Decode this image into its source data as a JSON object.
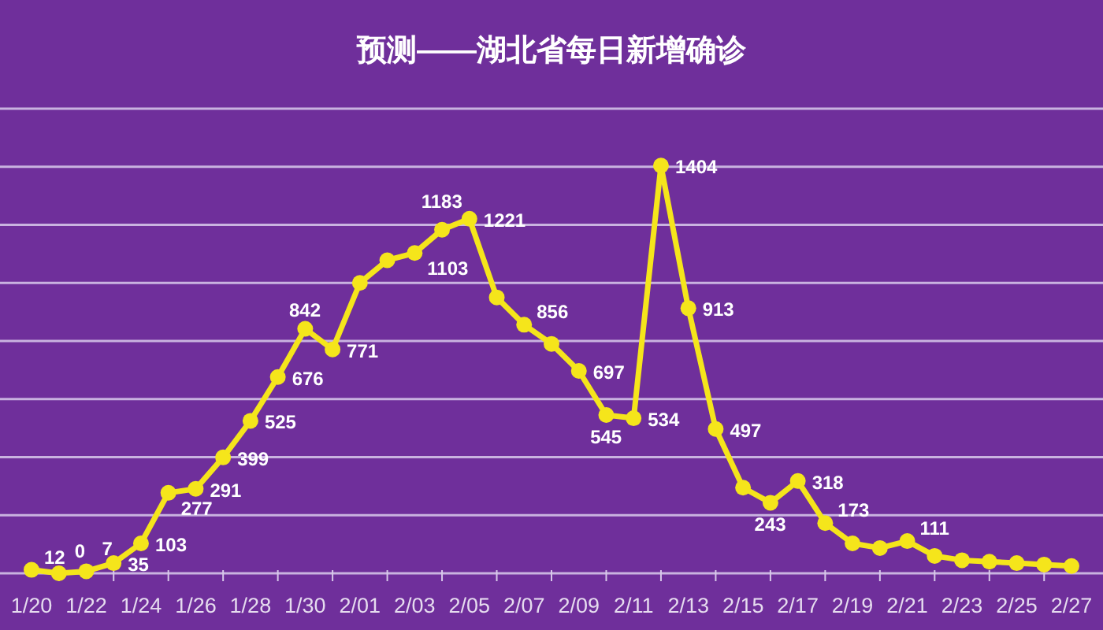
{
  "chart_data": {
    "type": "line",
    "title": "预测——湖北省每日新增确诊",
    "categories": [
      "1/20",
      null,
      "1/22",
      null,
      "1/24",
      null,
      "1/26",
      null,
      "1/28",
      null,
      "1/30",
      null,
      "2/01",
      null,
      "2/03",
      null,
      "2/05",
      null,
      "2/07",
      null,
      "2/09",
      null,
      "2/11",
      null,
      "2/13",
      null,
      "2/15",
      null,
      "2/17",
      null,
      "2/19",
      null,
      "2/21",
      null,
      "2/23",
      null,
      "2/25",
      null,
      "2/27"
    ],
    "values": [
      12,
      0,
      7,
      35,
      103,
      277,
      291,
      399,
      525,
      676,
      842,
      771,
      1000,
      1078,
      1103,
      1183,
      1221,
      950,
      856,
      790,
      697,
      545,
      534,
      1404,
      913,
      497,
      295,
      243,
      318,
      173,
      103,
      87,
      111,
      60,
      45,
      40,
      35,
      30,
      25
    ],
    "value_labels": [
      "12",
      "0",
      "7",
      "35",
      "103",
      "277",
      "291",
      "399",
      "525",
      "676",
      "842",
      "771",
      null,
      null,
      "1103",
      "1183",
      "1221",
      null,
      "856",
      null,
      "697",
      "545",
      "534",
      "1404",
      "913",
      "497",
      null,
      "243",
      "318",
      "173",
      null,
      null,
      "111",
      null,
      null,
      null,
      null,
      null,
      null
    ],
    "color": "#f5e51b",
    "marker": "circle",
    "line_style": "solid",
    "grid": "y",
    "ylim": [
      0,
      1600
    ],
    "yticks": [
      {
        "value": 0,
        "label": null
      },
      {
        "value": 200,
        "label": null
      },
      {
        "value": 400,
        "label": null
      },
      {
        "value": 600,
        "label": null
      },
      {
        "value": 800,
        "label": null
      },
      {
        "value": 1000,
        "label": null
      },
      {
        "value": 1200,
        "label": null
      },
      {
        "value": 1400,
        "label": null
      },
      {
        "value": 1600,
        "label": null
      }
    ]
  }
}
